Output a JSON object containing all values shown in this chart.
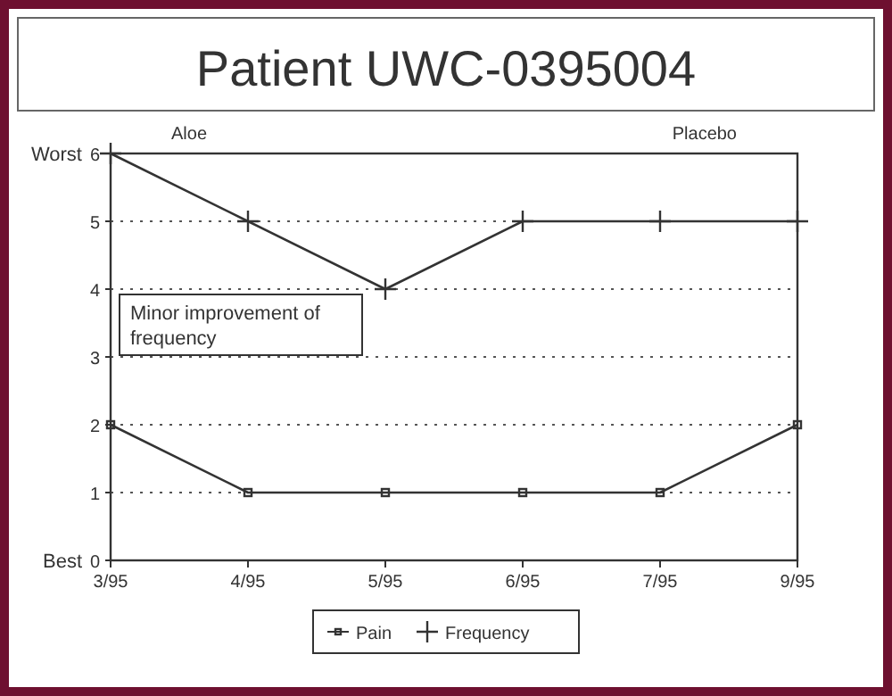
{
  "chart_data": {
    "type": "line",
    "title": "Patient UWC-0395004",
    "categories": [
      "3/95",
      "4/95",
      "5/95",
      "6/95",
      "7/95",
      "9/95"
    ],
    "series": [
      {
        "name": "Pain",
        "color": "#333333",
        "values": [
          2,
          1,
          1,
          1,
          1,
          2
        ],
        "marker": "square"
      },
      {
        "name": "Frequency",
        "color": "#333333",
        "values": [
          6,
          5,
          4,
          5,
          5,
          5
        ],
        "marker": "cross"
      }
    ],
    "ylim": [
      0,
      6
    ],
    "yticks": [
      0,
      1,
      2,
      3,
      4,
      5,
      6
    ],
    "grid": "y",
    "legend": "bottom",
    "line_style": "solid",
    "annotations": [
      "Aloe",
      "Placebo",
      "Worst",
      "Best",
      "Minor improvement of frequency"
    ]
  }
}
